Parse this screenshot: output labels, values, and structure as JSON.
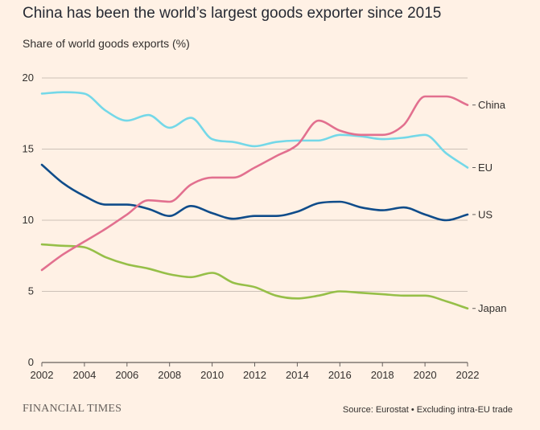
{
  "header": {
    "title": "China has been the world’s largest goods exporter since 2015",
    "subtitle": "Share of world goods exports (%)"
  },
  "footer": {
    "brand": "FINANCIAL TIMES",
    "source": "Source: Eurostat • Excluding intra-EU trade"
  },
  "colors": {
    "background": "#FFF1E5",
    "grid": "#CCC1B7",
    "axis": "#66605C",
    "China": "#E2708F",
    "EU": "#74D8E8",
    "US": "#0F4C8A",
    "Japan": "#96BF48"
  },
  "chart_data": {
    "type": "line",
    "title": "China has been the world’s largest goods exporter since 2015",
    "subtitle": "Share of world goods exports (%)",
    "xlabel": "",
    "ylabel": "",
    "x": [
      2002,
      2003,
      2004,
      2005,
      2006,
      2007,
      2008,
      2009,
      2010,
      2011,
      2012,
      2013,
      2014,
      2015,
      2016,
      2017,
      2018,
      2019,
      2020,
      2021,
      2022
    ],
    "xticks": [
      "2002",
      "2004",
      "2006",
      "2008",
      "2010",
      "2012",
      "2014",
      "2016",
      "2018",
      "2020",
      "2022"
    ],
    "yticks": [
      "0",
      "5",
      "10",
      "15",
      "20"
    ],
    "xlim": [
      2002,
      2022
    ],
    "ylim": [
      0,
      20
    ],
    "grid": true,
    "legend": "direct labels at right end of lines",
    "series": [
      {
        "name": "China",
        "values": [
          6.5,
          7.6,
          8.5,
          9.4,
          10.4,
          11.4,
          11.3,
          12.5,
          13.0,
          13.0,
          13.7,
          14.5,
          15.3,
          17.0,
          16.3,
          16.0,
          16.0,
          16.7,
          18.7,
          18.7,
          18.1
        ]
      },
      {
        "name": "EU",
        "values": [
          18.9,
          19.0,
          18.9,
          17.7,
          17.0,
          17.4,
          16.5,
          17.2,
          15.7,
          15.5,
          15.2,
          15.5,
          15.6,
          15.6,
          16.0,
          15.9,
          15.7,
          15.8,
          16.0,
          14.7,
          13.7
        ]
      },
      {
        "name": "US",
        "values": [
          13.9,
          12.6,
          11.7,
          11.1,
          11.1,
          10.8,
          10.3,
          11.0,
          10.5,
          10.1,
          10.3,
          10.3,
          10.6,
          11.2,
          11.3,
          10.9,
          10.7,
          10.9,
          10.4,
          10.0,
          10.4
        ]
      },
      {
        "name": "Japan",
        "values": [
          8.3,
          8.2,
          8.1,
          7.4,
          6.9,
          6.6,
          6.2,
          6.0,
          6.3,
          5.6,
          5.3,
          4.7,
          4.5,
          4.7,
          5.0,
          4.9,
          4.8,
          4.7,
          4.7,
          4.3,
          3.8
        ]
      }
    ]
  }
}
